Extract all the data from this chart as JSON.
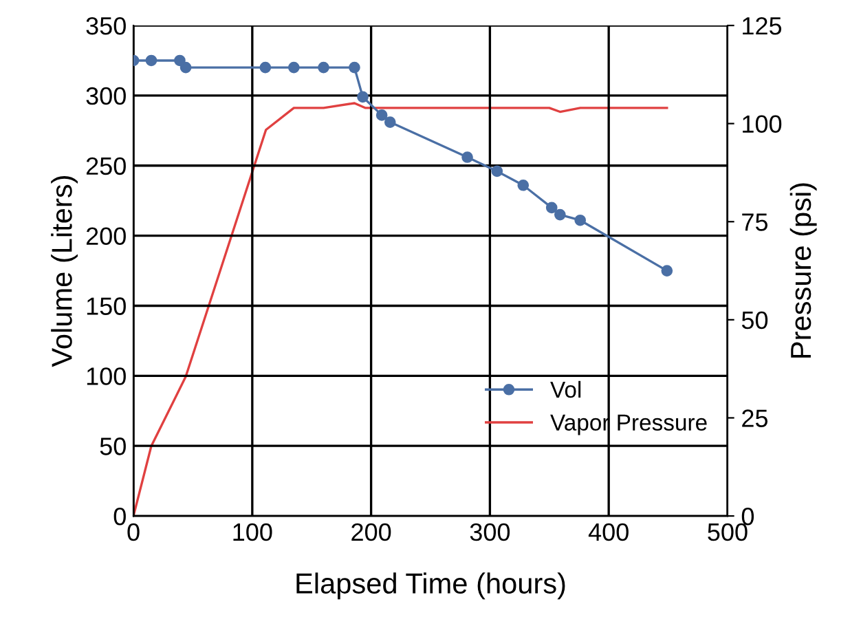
{
  "chart_data": {
    "type": "line",
    "xlabel": "Elapsed Time (hours)",
    "ylabel": "Volume (Liters)",
    "y2label": "Pressure (psi)",
    "xlim": [
      0,
      500
    ],
    "xticks": [
      0,
      100,
      200,
      300,
      400,
      500
    ],
    "ylim": [
      0,
      350
    ],
    "yticks": [
      0,
      50,
      100,
      150,
      200,
      250,
      300,
      350
    ],
    "y2lim": [
      0,
      125
    ],
    "y2ticks": [
      0,
      25,
      50,
      75,
      100,
      125
    ],
    "grid": true,
    "legend": "bottom",
    "series": [
      {
        "name": "Vol",
        "color": "#4a6fa5",
        "marker": "circle",
        "x": [
          0,
          15,
          39,
          44,
          111,
          135,
          160,
          186,
          193,
          209,
          216,
          281,
          306,
          328,
          352,
          359,
          376,
          449
        ],
        "values": [
          325,
          325,
          325,
          320,
          320,
          320,
          320,
          320,
          299,
          286,
          281,
          256,
          246,
          236,
          220,
          215,
          211,
          175
        ]
      },
      {
        "name": "Vapor Pressure",
        "color": "#e04040",
        "axis": "y2",
        "x": [
          0,
          15,
          44,
          111.5,
          135,
          160,
          186,
          195,
          350,
          359,
          376,
          449
        ],
        "values": [
          0,
          17.8,
          35.5,
          98.4,
          104,
          104,
          105.2,
          104,
          104,
          103,
          104,
          104
        ]
      }
    ]
  }
}
